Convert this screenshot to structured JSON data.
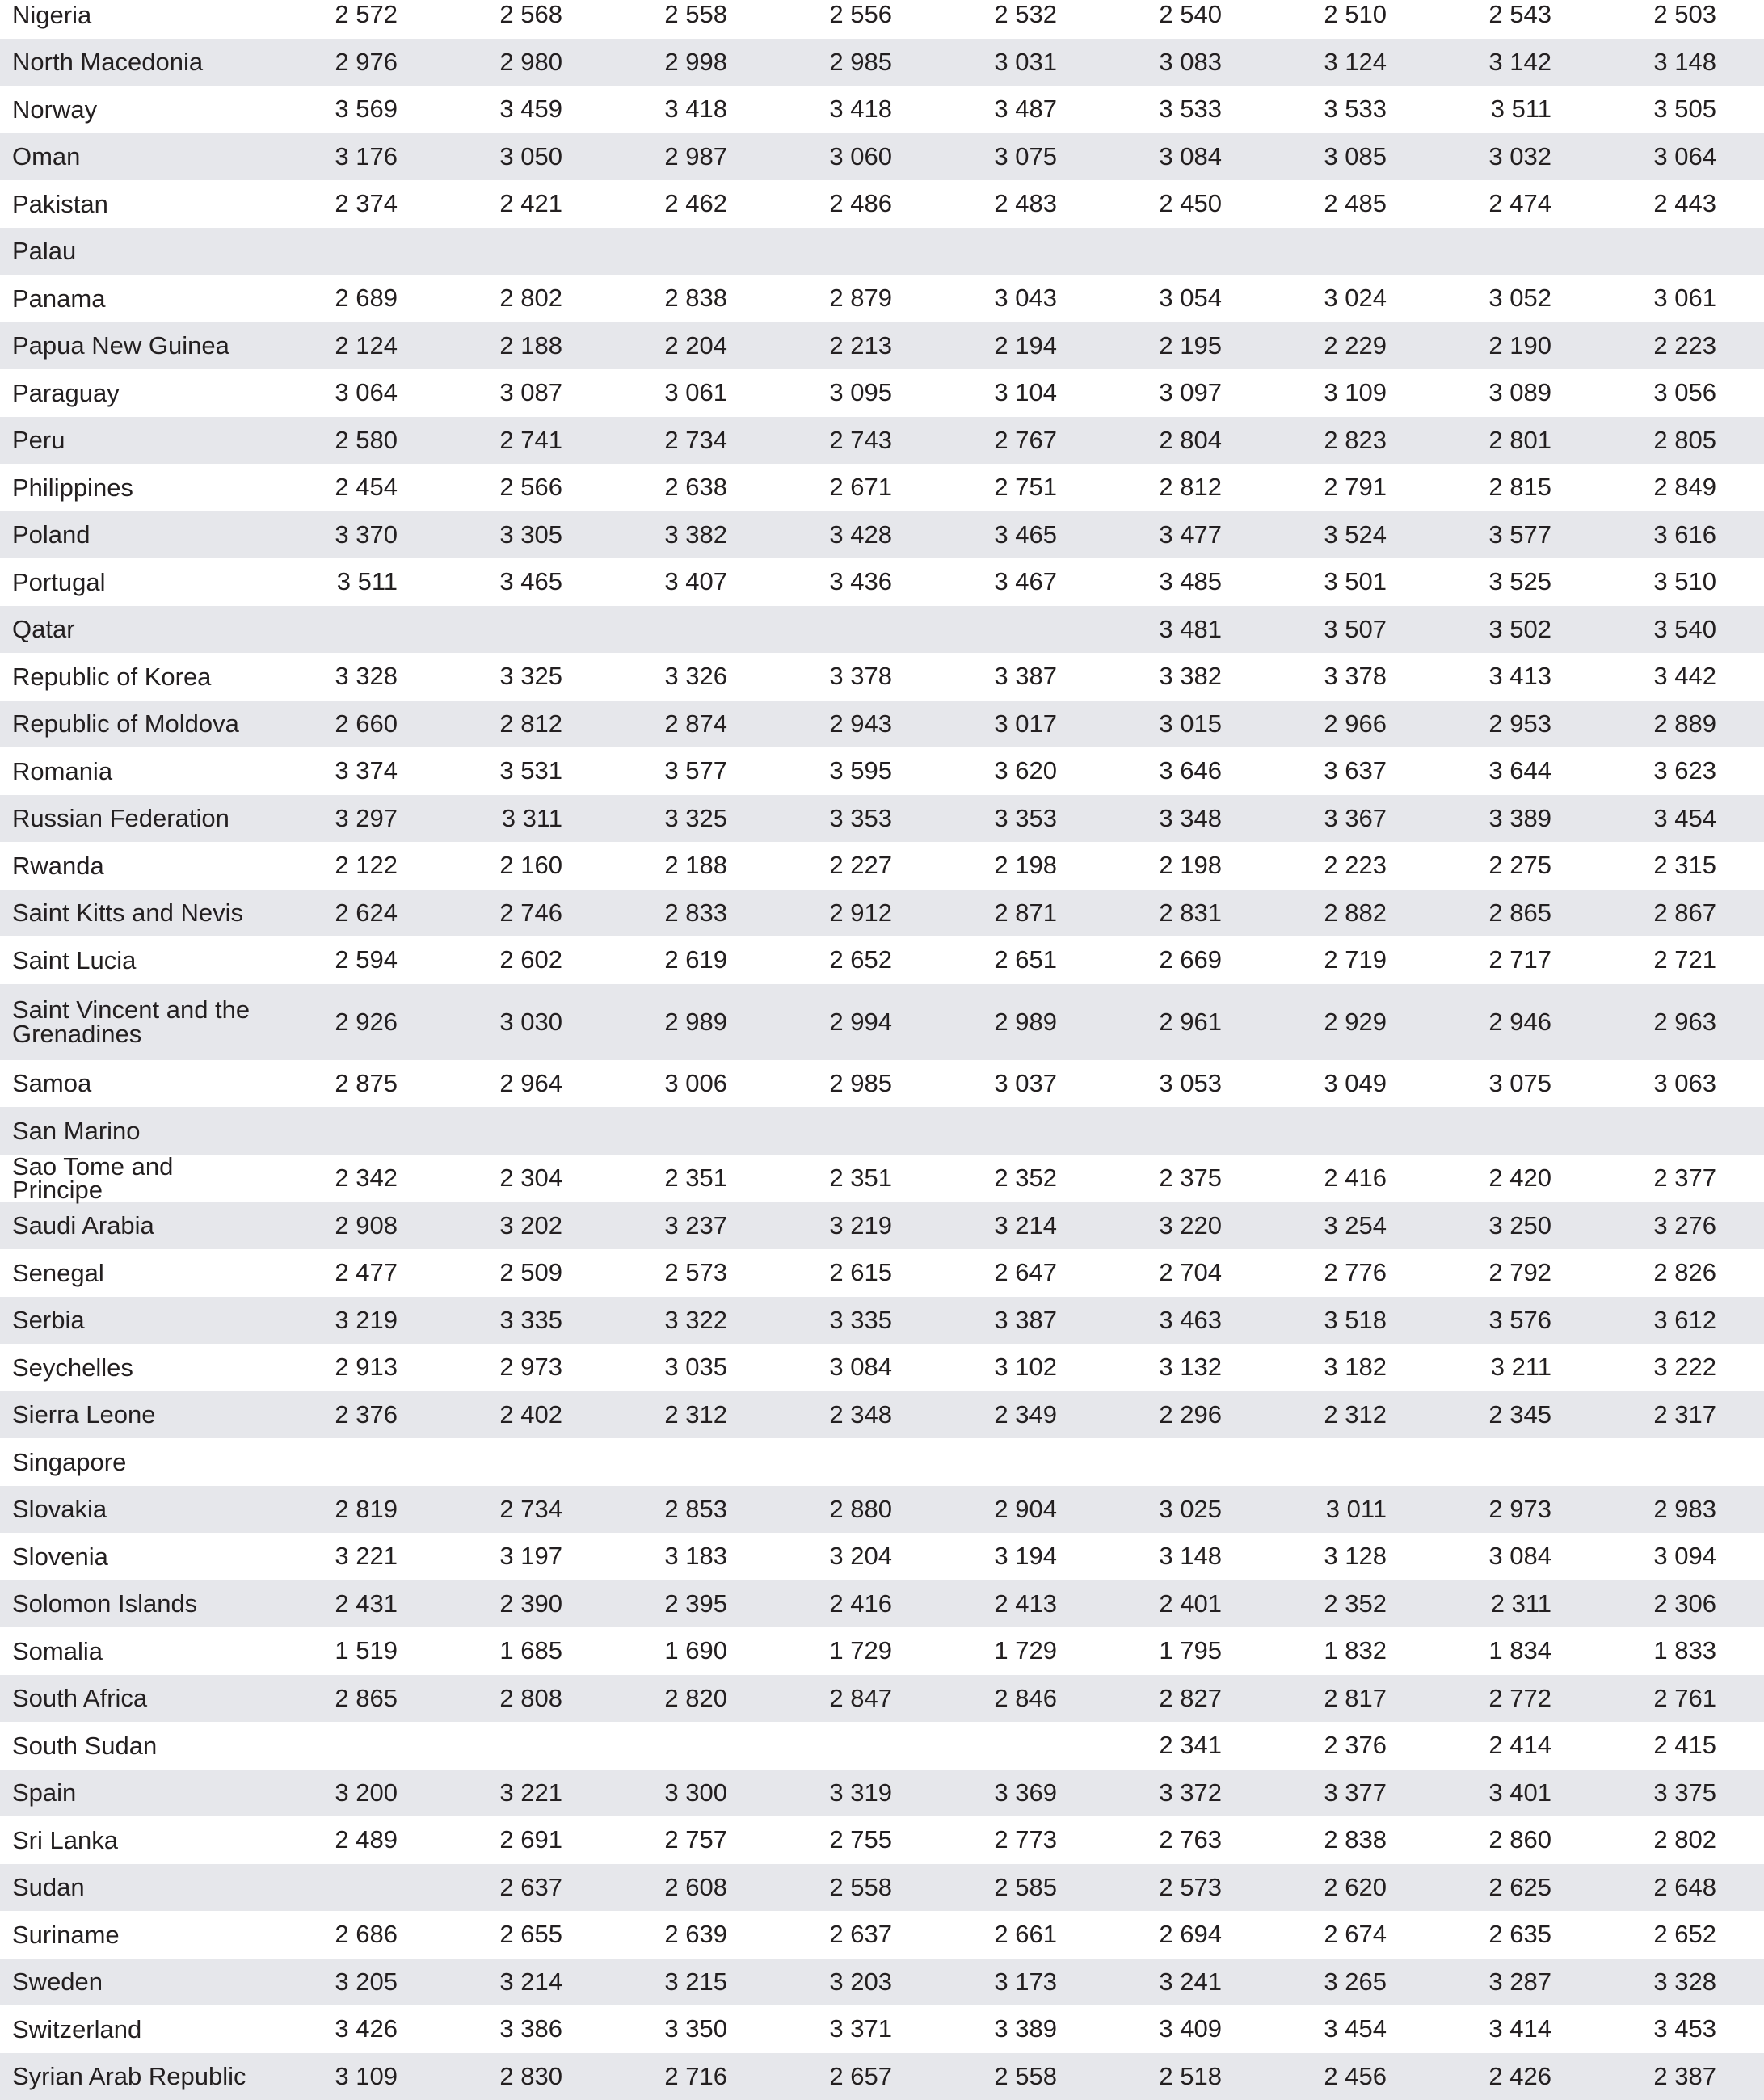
{
  "table": {
    "rows": [
      [
        "Nigeria",
        "2 572",
        "2 568",
        "2 558",
        "2 556",
        "2 532",
        "2 540",
        "2 510",
        "2 543",
        "2 503"
      ],
      [
        "North Macedonia",
        "2 976",
        "2 980",
        "2 998",
        "2 985",
        "3 031",
        "3 083",
        "3 124",
        "3 142",
        "3 148"
      ],
      [
        "Norway",
        "3 569",
        "3 459",
        "3 418",
        "3 418",
        "3 487",
        "3 533",
        "3 533",
        "3 511",
        "3 505"
      ],
      [
        "Oman",
        "3 176",
        "3 050",
        "2 987",
        "3 060",
        "3 075",
        "3 084",
        "3 085",
        "3 032",
        "3 064"
      ],
      [
        "Pakistan",
        "2 374",
        "2 421",
        "2 462",
        "2 486",
        "2 483",
        "2 450",
        "2 485",
        "2 474",
        "2 443"
      ],
      [
        "Palau",
        null,
        null,
        null,
        null,
        null,
        null,
        null,
        null,
        null
      ],
      [
        "Panama",
        "2 689",
        "2 802",
        "2 838",
        "2 879",
        "3 043",
        "3 054",
        "3 024",
        "3 052",
        "3 061"
      ],
      [
        "Papua New Guinea",
        "2 124",
        "2 188",
        "2 204",
        "2 213",
        "2 194",
        "2 195",
        "2 229",
        "2 190",
        "2 223"
      ],
      [
        "Paraguay",
        "3 064",
        "3 087",
        "3 061",
        "3 095",
        "3 104",
        "3 097",
        "3 109",
        "3 089",
        "3 056"
      ],
      [
        "Peru",
        "2 580",
        "2 741",
        "2 734",
        "2 743",
        "2 767",
        "2 804",
        "2 823",
        "2 801",
        "2 805"
      ],
      [
        "Philippines",
        "2 454",
        "2 566",
        "2 638",
        "2 671",
        "2 751",
        "2 812",
        "2 791",
        "2 815",
        "2 849"
      ],
      [
        "Poland",
        "3 370",
        "3 305",
        "3 382",
        "3 428",
        "3 465",
        "3 477",
        "3 524",
        "3 577",
        "3 616"
      ],
      [
        "Portugal",
        "3 511",
        "3 465",
        "3 407",
        "3 436",
        "3 467",
        "3 485",
        "3 501",
        "3 525",
        "3 510"
      ],
      [
        "Qatar",
        null,
        null,
        null,
        null,
        null,
        "3 481",
        "3 507",
        "3 502",
        "3 540"
      ],
      [
        "Republic of Korea",
        "3 328",
        "3 325",
        "3 326",
        "3 378",
        "3 387",
        "3 382",
        "3 378",
        "3 413",
        "3 442"
      ],
      [
        "Republic of Moldova",
        "2 660",
        "2 812",
        "2 874",
        "2 943",
        "3 017",
        "3 015",
        "2 966",
        "2 953",
        "2 889"
      ],
      [
        "Romania",
        "3 374",
        "3 531",
        "3 577",
        "3 595",
        "3 620",
        "3 646",
        "3 637",
        "3 644",
        "3 623"
      ],
      [
        "Russian Federation",
        "3 297",
        "3 311",
        "3 325",
        "3 353",
        "3 353",
        "3 348",
        "3 367",
        "3 389",
        "3 454"
      ],
      [
        "Rwanda",
        "2 122",
        "2 160",
        "2 188",
        "2 227",
        "2 198",
        "2 198",
        "2 223",
        "2 275",
        "2 315"
      ],
      [
        "Saint Kitts and Nevis",
        "2 624",
        "2 746",
        "2 833",
        "2 912",
        "2 871",
        "2 831",
        "2 882",
        "2 865",
        "2 867"
      ],
      [
        "Saint Lucia",
        "2 594",
        "2 602",
        "2 619",
        "2 652",
        "2 651",
        "2 669",
        "2 719",
        "2 717",
        "2 721"
      ],
      [
        "Saint Vincent and the Grenadines",
        "2 926",
        "3 030",
        "2 989",
        "2 994",
        "2 989",
        "2 961",
        "2 929",
        "2 946",
        "2 963"
      ],
      [
        "Samoa",
        "2 875",
        "2 964",
        "3 006",
        "2 985",
        "3 037",
        "3 053",
        "3 049",
        "3 075",
        "3 063"
      ],
      [
        "San Marino",
        null,
        null,
        null,
        null,
        null,
        null,
        null,
        null,
        null
      ],
      [
        "Sao Tome and Principe",
        "2 342",
        "2 304",
        "2 351",
        "2 351",
        "2 352",
        "2 375",
        "2 416",
        "2 420",
        "2 377"
      ],
      [
        "Saudi Arabia",
        "2 908",
        "3 202",
        "3 237",
        "3 219",
        "3 214",
        "3 220",
        "3 254",
        "3 250",
        "3 276"
      ],
      [
        "Senegal",
        "2 477",
        "2 509",
        "2 573",
        "2 615",
        "2 647",
        "2 704",
        "2 776",
        "2 792",
        "2 826"
      ],
      [
        "Serbia",
        "3 219",
        "3 335",
        "3 322",
        "3 335",
        "3 387",
        "3 463",
        "3 518",
        "3 576",
        "3 612"
      ],
      [
        "Seychelles",
        "2 913",
        "2 973",
        "3 035",
        "3 084",
        "3 102",
        "3 132",
        "3 182",
        "3 211",
        "3 222"
      ],
      [
        "Sierra Leone",
        "2 376",
        "2 402",
        "2 312",
        "2 348",
        "2 349",
        "2 296",
        "2 312",
        "2 345",
        "2 317"
      ],
      [
        "Singapore",
        null,
        null,
        null,
        null,
        null,
        null,
        null,
        null,
        null
      ],
      [
        "Slovakia",
        "2 819",
        "2 734",
        "2 853",
        "2 880",
        "2 904",
        "3 025",
        "3 011",
        "2 973",
        "2 983"
      ],
      [
        "Slovenia",
        "3 221",
        "3 197",
        "3 183",
        "3 204",
        "3 194",
        "3 148",
        "3 128",
        "3 084",
        "3 094"
      ],
      [
        "Solomon Islands",
        "2 431",
        "2 390",
        "2 395",
        "2 416",
        "2 413",
        "2 401",
        "2 352",
        "2 311",
        "2 306"
      ],
      [
        "Somalia",
        "1 519",
        "1 685",
        "1 690",
        "1 729",
        "1 729",
        "1 795",
        "1 832",
        "1 834",
        "1 833"
      ],
      [
        "South Africa",
        "2 865",
        "2 808",
        "2 820",
        "2 847",
        "2 846",
        "2 827",
        "2 817",
        "2 772",
        "2 761"
      ],
      [
        "South Sudan",
        null,
        null,
        null,
        null,
        null,
        "2 341",
        "2 376",
        "2 414",
        "2 415"
      ],
      [
        "Spain",
        "3 200",
        "3 221",
        "3 300",
        "3 319",
        "3 369",
        "3 372",
        "3 377",
        "3 401",
        "3 375"
      ],
      [
        "Sri Lanka",
        "2 489",
        "2 691",
        "2 757",
        "2 755",
        "2 773",
        "2 763",
        "2 838",
        "2 860",
        "2 802"
      ],
      [
        "Sudan",
        null,
        "2 637",
        "2 608",
        "2 558",
        "2 585",
        "2 573",
        "2 620",
        "2 625",
        "2 648"
      ],
      [
        "Suriname",
        "2 686",
        "2 655",
        "2 639",
        "2 637",
        "2 661",
        "2 694",
        "2 674",
        "2 635",
        "2 652"
      ],
      [
        "Sweden",
        "3 205",
        "3 214",
        "3 215",
        "3 203",
        "3 173",
        "3 241",
        "3 265",
        "3 287",
        "3 328"
      ],
      [
        "Switzerland",
        "3 426",
        "3 386",
        "3 350",
        "3 371",
        "3 389",
        "3 409",
        "3 454",
        "3 414",
        "3 453"
      ],
      [
        "Syrian Arab Republic",
        "3 109",
        "2 830",
        "2 716",
        "2 657",
        "2 558",
        "2 518",
        "2 456",
        "2 426",
        "2 387"
      ]
    ]
  }
}
